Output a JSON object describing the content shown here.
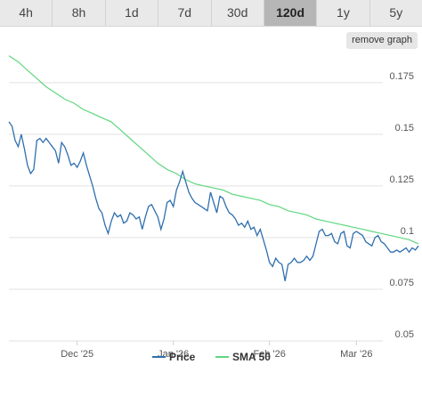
{
  "timeframe_tabs": [
    {
      "label": "4h",
      "active": false
    },
    {
      "label": "8h",
      "active": false
    },
    {
      "label": "1d",
      "active": false
    },
    {
      "label": "7d",
      "active": false
    },
    {
      "label": "30d",
      "active": false
    },
    {
      "label": "120d",
      "active": true
    },
    {
      "label": "1y",
      "active": false
    },
    {
      "label": "5y",
      "active": false
    }
  ],
  "remove_graph_label": "remove graph",
  "colors": {
    "price": "#2f6fae",
    "sma": "#5fd67f",
    "grid": "#e2e2e2",
    "active_tab": "#b6b6b6"
  },
  "chart_data": {
    "type": "line",
    "x_axis": {
      "start": "2025-11-09",
      "end": "2026-03-21",
      "ticks": [
        {
          "label": "Dec '25",
          "date": "2025-12-01"
        },
        {
          "label": "Jan '26",
          "date": "2026-01-01"
        },
        {
          "label": "Feb '26",
          "date": "2026-02-01"
        },
        {
          "label": "Mar '26",
          "date": "2026-03-01"
        }
      ]
    },
    "y_axis": {
      "min": 0.05,
      "max": 0.19,
      "ticks": [
        0.05,
        0.075,
        0.1,
        0.125,
        0.15,
        0.175
      ],
      "tick_labels": [
        "0.05",
        "0.075",
        "0.1",
        "0.125",
        "0.15",
        "0.175"
      ],
      "position": "right"
    },
    "grid": true,
    "legend_position": "bottom",
    "series": [
      {
        "name": "Price",
        "points": [
          [
            "2025-11-09",
            0.156
          ],
          [
            "2025-11-10",
            0.154
          ],
          [
            "2025-11-11",
            0.147
          ],
          [
            "2025-11-12",
            0.144
          ],
          [
            "2025-11-13",
            0.15
          ],
          [
            "2025-11-14",
            0.143
          ],
          [
            "2025-11-15",
            0.135
          ],
          [
            "2025-11-16",
            0.131
          ],
          [
            "2025-11-17",
            0.133
          ],
          [
            "2025-11-18",
            0.147
          ],
          [
            "2025-11-19",
            0.148
          ],
          [
            "2025-11-20",
            0.146
          ],
          [
            "2025-11-21",
            0.148
          ],
          [
            "2025-11-22",
            0.146
          ],
          [
            "2025-11-23",
            0.144
          ],
          [
            "2025-11-24",
            0.142
          ],
          [
            "2025-11-25",
            0.136
          ],
          [
            "2025-11-26",
            0.146
          ],
          [
            "2025-11-27",
            0.144
          ],
          [
            "2025-11-28",
            0.14
          ],
          [
            "2025-11-29",
            0.135
          ],
          [
            "2025-11-30",
            0.136
          ],
          [
            "2025-12-01",
            0.134
          ],
          [
            "2025-12-02",
            0.137
          ],
          [
            "2025-12-03",
            0.141
          ],
          [
            "2025-12-04",
            0.135
          ],
          [
            "2025-12-05",
            0.13
          ],
          [
            "2025-12-06",
            0.125
          ],
          [
            "2025-12-07",
            0.119
          ],
          [
            "2025-12-08",
            0.114
          ],
          [
            "2025-12-09",
            0.112
          ],
          [
            "2025-12-10",
            0.106
          ],
          [
            "2025-12-11",
            0.102
          ],
          [
            "2025-12-12",
            0.108
          ],
          [
            "2025-12-13",
            0.112
          ],
          [
            "2025-12-14",
            0.11
          ],
          [
            "2025-12-15",
            0.111
          ],
          [
            "2025-12-16",
            0.107
          ],
          [
            "2025-12-17",
            0.108
          ],
          [
            "2025-12-18",
            0.112
          ],
          [
            "2025-12-19",
            0.111
          ],
          [
            "2025-12-20",
            0.109
          ],
          [
            "2025-12-21",
            0.11
          ],
          [
            "2025-12-22",
            0.104
          ],
          [
            "2025-12-23",
            0.11
          ],
          [
            "2025-12-24",
            0.115
          ],
          [
            "2025-12-25",
            0.116
          ],
          [
            "2025-12-26",
            0.113
          ],
          [
            "2025-12-27",
            0.11
          ],
          [
            "2025-12-28",
            0.104
          ],
          [
            "2025-12-29",
            0.109
          ],
          [
            "2025-12-30",
            0.117
          ],
          [
            "2025-12-31",
            0.118
          ],
          [
            "2026-01-01",
            0.115
          ],
          [
            "2026-01-02",
            0.123
          ],
          [
            "2026-01-03",
            0.127
          ],
          [
            "2026-01-04",
            0.132
          ],
          [
            "2026-01-05",
            0.127
          ],
          [
            "2026-01-06",
            0.122
          ],
          [
            "2026-01-07",
            0.119
          ],
          [
            "2026-01-08",
            0.117
          ],
          [
            "2026-01-09",
            0.116
          ],
          [
            "2026-01-10",
            0.115
          ],
          [
            "2026-01-11",
            0.114
          ],
          [
            "2026-01-12",
            0.113
          ],
          [
            "2026-01-13",
            0.122
          ],
          [
            "2026-01-14",
            0.117
          ],
          [
            "2026-01-15",
            0.112
          ],
          [
            "2026-01-16",
            0.12
          ],
          [
            "2026-01-17",
            0.119
          ],
          [
            "2026-01-18",
            0.115
          ],
          [
            "2026-01-19",
            0.112
          ],
          [
            "2026-01-20",
            0.111
          ],
          [
            "2026-01-21",
            0.109
          ],
          [
            "2026-01-22",
            0.106
          ],
          [
            "2026-01-23",
            0.107
          ],
          [
            "2026-01-24",
            0.105
          ],
          [
            "2026-01-25",
            0.108
          ],
          [
            "2026-01-26",
            0.104
          ],
          [
            "2026-01-27",
            0.105
          ],
          [
            "2026-01-28",
            0.101
          ],
          [
            "2026-01-29",
            0.104
          ],
          [
            "2026-01-30",
            0.099
          ],
          [
            "2026-01-31",
            0.094
          ],
          [
            "2026-02-01",
            0.088
          ],
          [
            "2026-02-02",
            0.086
          ],
          [
            "2026-02-03",
            0.09
          ],
          [
            "2026-02-04",
            0.088
          ],
          [
            "2026-02-05",
            0.087
          ],
          [
            "2026-02-06",
            0.079
          ],
          [
            "2026-02-07",
            0.087
          ],
          [
            "2026-02-08",
            0.088
          ],
          [
            "2026-02-09",
            0.09
          ],
          [
            "2026-02-10",
            0.088
          ],
          [
            "2026-02-11",
            0.088
          ],
          [
            "2026-02-12",
            0.089
          ],
          [
            "2026-02-13",
            0.091
          ],
          [
            "2026-02-14",
            0.089
          ],
          [
            "2026-02-15",
            0.091
          ],
          [
            "2026-02-16",
            0.097
          ],
          [
            "2026-02-17",
            0.103
          ],
          [
            "2026-02-18",
            0.104
          ],
          [
            "2026-02-19",
            0.101
          ],
          [
            "2026-02-20",
            0.101
          ],
          [
            "2026-02-21",
            0.102
          ],
          [
            "2026-02-22",
            0.098
          ],
          [
            "2026-02-23",
            0.097
          ],
          [
            "2026-02-24",
            0.102
          ],
          [
            "2026-02-25",
            0.103
          ],
          [
            "2026-02-26",
            0.096
          ],
          [
            "2026-02-27",
            0.095
          ],
          [
            "2026-02-28",
            0.102
          ],
          [
            "2026-03-01",
            0.103
          ],
          [
            "2026-03-02",
            0.102
          ],
          [
            "2026-03-03",
            0.101
          ],
          [
            "2026-03-04",
            0.098
          ],
          [
            "2026-03-05",
            0.097
          ],
          [
            "2026-03-06",
            0.096
          ],
          [
            "2026-03-07",
            0.1
          ],
          [
            "2026-03-08",
            0.101
          ],
          [
            "2026-03-09",
            0.098
          ],
          [
            "2026-03-10",
            0.097
          ],
          [
            "2026-03-11",
            0.095
          ],
          [
            "2026-03-12",
            0.093
          ],
          [
            "2026-03-13",
            0.093
          ],
          [
            "2026-03-14",
            0.094
          ],
          [
            "2026-03-15",
            0.093
          ],
          [
            "2026-03-16",
            0.094
          ],
          [
            "2026-03-17",
            0.095
          ],
          [
            "2026-03-18",
            0.093
          ],
          [
            "2026-03-19",
            0.095
          ],
          [
            "2026-03-20",
            0.094
          ],
          [
            "2026-03-21",
            0.096
          ]
        ]
      },
      {
        "name": "SMA 50",
        "points": [
          [
            "2025-11-09",
            0.188
          ],
          [
            "2025-11-12",
            0.185
          ],
          [
            "2025-11-15",
            0.181
          ],
          [
            "2025-11-18",
            0.177
          ],
          [
            "2025-11-21",
            0.173
          ],
          [
            "2025-11-24",
            0.17
          ],
          [
            "2025-11-27",
            0.167
          ],
          [
            "2025-11-30",
            0.165
          ],
          [
            "2025-12-03",
            0.162
          ],
          [
            "2025-12-06",
            0.16
          ],
          [
            "2025-12-09",
            0.158
          ],
          [
            "2025-12-12",
            0.156
          ],
          [
            "2025-12-15",
            0.152
          ],
          [
            "2025-12-18",
            0.148
          ],
          [
            "2025-12-21",
            0.144
          ],
          [
            "2025-12-24",
            0.14
          ],
          [
            "2025-12-27",
            0.136
          ],
          [
            "2025-12-30",
            0.133
          ],
          [
            "2026-01-02",
            0.131
          ],
          [
            "2026-01-05",
            0.128
          ],
          [
            "2026-01-08",
            0.126
          ],
          [
            "2026-01-11",
            0.125
          ],
          [
            "2026-01-14",
            0.124
          ],
          [
            "2026-01-17",
            0.123
          ],
          [
            "2026-01-20",
            0.121
          ],
          [
            "2026-01-23",
            0.12
          ],
          [
            "2026-01-26",
            0.119
          ],
          [
            "2026-01-29",
            0.118
          ],
          [
            "2026-02-01",
            0.116
          ],
          [
            "2026-02-04",
            0.115
          ],
          [
            "2026-02-07",
            0.113
          ],
          [
            "2026-02-10",
            0.112
          ],
          [
            "2026-02-13",
            0.111
          ],
          [
            "2026-02-16",
            0.109
          ],
          [
            "2026-02-19",
            0.108
          ],
          [
            "2026-02-22",
            0.107
          ],
          [
            "2026-02-25",
            0.106
          ],
          [
            "2026-02-28",
            0.105
          ],
          [
            "2026-03-03",
            0.104
          ],
          [
            "2026-03-06",
            0.103
          ],
          [
            "2026-03-09",
            0.102
          ],
          [
            "2026-03-12",
            0.101
          ],
          [
            "2026-03-15",
            0.1
          ],
          [
            "2026-03-18",
            0.099
          ],
          [
            "2026-03-21",
            0.097
          ]
        ]
      }
    ]
  }
}
